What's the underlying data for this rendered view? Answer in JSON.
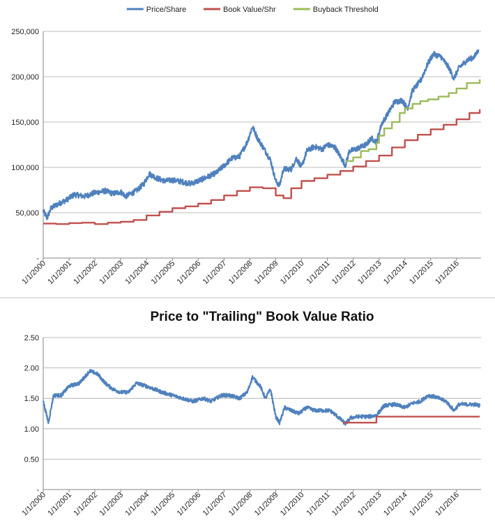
{
  "chart_data": [
    {
      "type": "line",
      "title": "",
      "xlabel": "",
      "ylabel": "",
      "ylim": [
        0,
        250000
      ],
      "y_ticks": [
        "-",
        "50,000",
        "100,000",
        "150,000",
        "200,000",
        "250,000"
      ],
      "x_ticks": [
        "1/1/2000",
        "1/1/2001",
        "1/1/2002",
        "1/1/2003",
        "1/1/2004",
        "1/1/2005",
        "1/1/2006",
        "1/1/2007",
        "1/1/2008",
        "1/1/2009",
        "1/1/2010",
        "1/1/2011",
        "1/1/2012",
        "1/1/2013",
        "1/1/2014",
        "1/1/2015",
        "1/1/2016"
      ],
      "grid": true,
      "legend_position": "top",
      "series": [
        {
          "name": "Price/Share",
          "color": "#4f81bd",
          "style": "noisy",
          "points": [
            [
              2000.0,
              52000
            ],
            [
              2000.15,
              44000
            ],
            [
              2000.3,
              55000
            ],
            [
              2000.6,
              60000
            ],
            [
              2000.9,
              64000
            ],
            [
              2001.2,
              70000
            ],
            [
              2001.6,
              68000
            ],
            [
              2002.0,
              72000
            ],
            [
              2002.4,
              74000
            ],
            [
              2002.7,
              71000
            ],
            [
              2003.0,
              73000
            ],
            [
              2003.2,
              68000
            ],
            [
              2003.6,
              74000
            ],
            [
              2003.9,
              82000
            ],
            [
              2004.1,
              93000
            ],
            [
              2004.4,
              88000
            ],
            [
              2004.7,
              85000
            ],
            [
              2005.0,
              86000
            ],
            [
              2005.4,
              84000
            ],
            [
              2005.7,
              82000
            ],
            [
              2006.0,
              85000
            ],
            [
              2006.4,
              90000
            ],
            [
              2006.7,
              94000
            ],
            [
              2007.0,
              102000
            ],
            [
              2007.3,
              110000
            ],
            [
              2007.6,
              112000
            ],
            [
              2007.9,
              128000
            ],
            [
              2008.1,
              145000
            ],
            [
              2008.3,
              132000
            ],
            [
              2008.6,
              118000
            ],
            [
              2008.8,
              108000
            ],
            [
              2009.0,
              85000
            ],
            [
              2009.15,
              80000
            ],
            [
              2009.3,
              98000
            ],
            [
              2009.6,
              98000
            ],
            [
              2009.8,
              110000
            ],
            [
              2010.0,
              100000
            ],
            [
              2010.2,
              118000
            ],
            [
              2010.5,
              123000
            ],
            [
              2010.8,
              120000
            ],
            [
              2011.0,
              125000
            ],
            [
              2011.3,
              122000
            ],
            [
              2011.5,
              112000
            ],
            [
              2011.7,
              102000
            ],
            [
              2011.85,
              118000
            ],
            [
              2012.1,
              120000
            ],
            [
              2012.5,
              125000
            ],
            [
              2012.7,
              132000
            ],
            [
              2012.9,
              128000
            ],
            [
              2013.1,
              148000
            ],
            [
              2013.4,
              162000
            ],
            [
              2013.6,
              172000
            ],
            [
              2013.9,
              174000
            ],
            [
              2014.1,
              165000
            ],
            [
              2014.3,
              185000
            ],
            [
              2014.6,
              195000
            ],
            [
              2014.9,
              215000
            ],
            [
              2015.1,
              225000
            ],
            [
              2015.4,
              222000
            ],
            [
              2015.7,
              210000
            ],
            [
              2015.9,
              198000
            ],
            [
              2016.1,
              210000
            ],
            [
              2016.4,
              218000
            ],
            [
              2016.7,
              222000
            ],
            [
              2016.85,
              230000
            ]
          ]
        },
        {
          "name": "Book Value/Shr",
          "color": "#c0504d",
          "style": "step",
          "points": [
            [
              2000.0,
              38000
            ],
            [
              2000.5,
              37500
            ],
            [
              2001.0,
              38500
            ],
            [
              2001.5,
              39000
            ],
            [
              2002.0,
              37500
            ],
            [
              2002.5,
              39000
            ],
            [
              2003.0,
              40000
            ],
            [
              2003.5,
              42000
            ],
            [
              2004.0,
              47000
            ],
            [
              2004.5,
              51000
            ],
            [
              2005.0,
              55000
            ],
            [
              2005.5,
              57000
            ],
            [
              2006.0,
              60000
            ],
            [
              2006.5,
              64000
            ],
            [
              2007.0,
              69000
            ],
            [
              2007.5,
              74000
            ],
            [
              2008.0,
              78000
            ],
            [
              2008.5,
              77000
            ],
            [
              2009.0,
              69000
            ],
            [
              2009.3,
              66000
            ],
            [
              2009.6,
              77000
            ],
            [
              2010.0,
              85000
            ],
            [
              2010.5,
              88000
            ],
            [
              2011.0,
              92000
            ],
            [
              2011.5,
              96000
            ],
            [
              2012.0,
              101000
            ],
            [
              2012.5,
              107000
            ],
            [
              2013.0,
              113000
            ],
            [
              2013.5,
              122000
            ],
            [
              2014.0,
              130000
            ],
            [
              2014.5,
              136000
            ],
            [
              2015.0,
              142000
            ],
            [
              2015.5,
              147000
            ],
            [
              2016.0,
              153000
            ],
            [
              2016.5,
              160000
            ],
            [
              2016.9,
              164000
            ]
          ]
        },
        {
          "name": "Buyback Threshold",
          "color": "#9bbb59",
          "style": "step",
          "points": [
            [
              2011.7,
              107000
            ],
            [
              2012.0,
              111000
            ],
            [
              2012.3,
              118000
            ],
            [
              2012.6,
              120000
            ],
            [
              2012.9,
              127000
            ],
            [
              2013.0,
              135000
            ],
            [
              2013.2,
              143000
            ],
            [
              2013.5,
              150000
            ],
            [
              2013.8,
              160000
            ],
            [
              2014.0,
              165000
            ],
            [
              2014.3,
              170000
            ],
            [
              2014.6,
              173000
            ],
            [
              2014.9,
              175000
            ],
            [
              2015.3,
              178000
            ],
            [
              2015.7,
              182000
            ],
            [
              2016.0,
              187000
            ],
            [
              2016.4,
              193000
            ],
            [
              2016.9,
              197000
            ]
          ]
        }
      ]
    },
    {
      "type": "line",
      "title": "Price to \"Trailing\" Book Value Ratio",
      "xlabel": "",
      "ylabel": "",
      "ylim": [
        0,
        2.5
      ],
      "y_ticks": [
        "-",
        "0.50",
        "1.00",
        "1.50",
        "2.00",
        "2.50"
      ],
      "x_ticks": [
        "1/1/2000",
        "1/1/2001",
        "1/1/2002",
        "1/1/2003",
        "1/1/2004",
        "1/1/2005",
        "1/1/2006",
        "1/1/2007",
        "1/1/2008",
        "1/1/2009",
        "1/1/2010",
        "1/1/2011",
        "1/1/2012",
        "1/1/2013",
        "1/1/2014",
        "1/1/2015",
        "1/1/2016"
      ],
      "grid": true,
      "series": [
        {
          "color": "#4f81bd",
          "style": "noisy",
          "points": [
            [
              2000.0,
              1.45
            ],
            [
              2000.2,
              1.1
            ],
            [
              2000.4,
              1.55
            ],
            [
              2000.7,
              1.55
            ],
            [
              2001.0,
              1.7
            ],
            [
              2001.4,
              1.75
            ],
            [
              2001.8,
              1.95
            ],
            [
              2002.1,
              1.9
            ],
            [
              2002.4,
              1.75
            ],
            [
              2002.7,
              1.65
            ],
            [
              2003.0,
              1.6
            ],
            [
              2003.3,
              1.6
            ],
            [
              2003.6,
              1.75
            ],
            [
              2004.0,
              1.7
            ],
            [
              2004.3,
              1.65
            ],
            [
              2004.6,
              1.6
            ],
            [
              2005.0,
              1.55
            ],
            [
              2005.4,
              1.5
            ],
            [
              2005.8,
              1.45
            ],
            [
              2006.2,
              1.5
            ],
            [
              2006.5,
              1.45
            ],
            [
              2006.9,
              1.55
            ],
            [
              2007.2,
              1.55
            ],
            [
              2007.6,
              1.5
            ],
            [
              2007.9,
              1.6
            ],
            [
              2008.1,
              1.85
            ],
            [
              2008.4,
              1.7
            ],
            [
              2008.6,
              1.5
            ],
            [
              2008.8,
              1.65
            ],
            [
              2009.0,
              1.2
            ],
            [
              2009.15,
              1.1
            ],
            [
              2009.35,
              1.35
            ],
            [
              2009.6,
              1.3
            ],
            [
              2009.9,
              1.25
            ],
            [
              2010.2,
              1.35
            ],
            [
              2010.5,
              1.3
            ],
            [
              2010.8,
              1.3
            ],
            [
              2011.1,
              1.3
            ],
            [
              2011.4,
              1.2
            ],
            [
              2011.7,
              1.08
            ],
            [
              2011.9,
              1.18
            ],
            [
              2012.2,
              1.2
            ],
            [
              2012.6,
              1.2
            ],
            [
              2012.9,
              1.22
            ],
            [
              2013.2,
              1.38
            ],
            [
              2013.6,
              1.4
            ],
            [
              2014.0,
              1.35
            ],
            [
              2014.3,
              1.42
            ],
            [
              2014.6,
              1.45
            ],
            [
              2014.9,
              1.55
            ],
            [
              2015.2,
              1.52
            ],
            [
              2015.6,
              1.45
            ],
            [
              2015.9,
              1.3
            ],
            [
              2016.1,
              1.4
            ],
            [
              2016.4,
              1.4
            ],
            [
              2016.7,
              1.4
            ],
            [
              2016.9,
              1.38
            ]
          ]
        },
        {
          "color": "#c0504d",
          "style": "step",
          "points": [
            [
              2011.6,
              1.1
            ],
            [
              2012.85,
              1.1
            ],
            [
              2012.9,
              1.2
            ],
            [
              2016.9,
              1.2
            ]
          ]
        }
      ]
    }
  ]
}
